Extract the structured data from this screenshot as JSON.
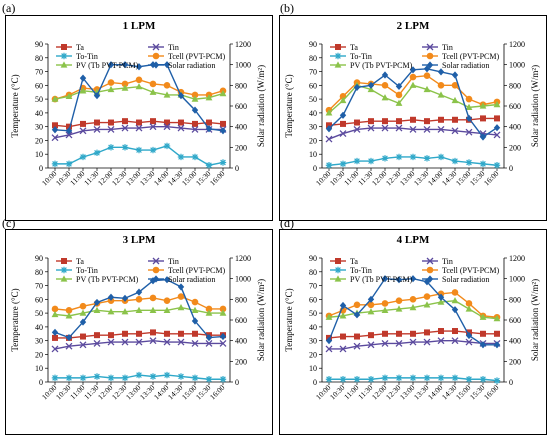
{
  "figure": {
    "panel_labels": [
      "(a)",
      "(b)",
      "(c)",
      "(d)"
    ]
  },
  "series_styles": [
    {
      "key": "Ta",
      "color": "#c0392b",
      "marker": "square"
    },
    {
      "key": "Tin",
      "color": "#5b4a9e",
      "marker": "x"
    },
    {
      "key": "ToTin",
      "color": "#2fa8c9",
      "marker": "star"
    },
    {
      "key": "Tcell",
      "color": "#f28a1b",
      "marker": "circle"
    },
    {
      "key": "PV",
      "color": "#8bc34a",
      "marker": "triangle"
    },
    {
      "key": "Solar",
      "color": "#1f5fa8",
      "marker": "diamond"
    }
  ],
  "chart_data": [
    {
      "type": "line",
      "title": "1 LPM",
      "ylabel": "Temperature (°C)",
      "y2label": "Solar radiation (W/m²)",
      "ylim": [
        0,
        90
      ],
      "y2lim": [
        0,
        1200
      ],
      "yticks": [
        0,
        10,
        20,
        30,
        40,
        50,
        60,
        70,
        80,
        90
      ],
      "y2ticks": [
        0,
        200,
        400,
        600,
        800,
        1000,
        1200
      ],
      "x": [
        "10:00",
        "10:30",
        "11:00",
        "11:30",
        "12:00",
        "12:30",
        "13:00",
        "13:30",
        "14:00",
        "14:30",
        "15:00",
        "15:30",
        "16:00"
      ],
      "grid": false,
      "legend_placement": "top",
      "series": [
        {
          "name": "Ta",
          "axis": "left",
          "values": [
            31,
            30,
            32,
            33,
            33,
            34,
            33,
            34,
            33,
            33,
            32,
            33,
            32
          ]
        },
        {
          "name": "Tin",
          "axis": "left",
          "values": [
            22,
            24,
            27,
            28,
            28,
            29,
            29,
            30,
            30,
            29,
            28,
            28,
            28
          ]
        },
        {
          "name": "To-Tin",
          "axis": "left",
          "values": [
            3,
            3,
            8,
            11,
            15,
            15,
            13,
            13,
            16,
            8,
            8,
            2,
            4
          ]
        },
        {
          "name": "Tcell (PVT-PCM)",
          "axis": "left",
          "values": [
            50,
            53,
            58,
            57,
            62,
            61,
            64,
            61,
            60,
            55,
            53,
            53,
            56
          ]
        },
        {
          "name": "PV (Tb PVT-PCM)",
          "axis": "left",
          "values": [
            50,
            52,
            56,
            55,
            57,
            58,
            59,
            55,
            53,
            53,
            50,
            51,
            54
          ]
        },
        {
          "name": "Solar radiation",
          "axis": "right",
          "values": [
            370,
            360,
            870,
            700,
            1000,
            1000,
            980,
            1000,
            1000,
            700,
            560,
            380,
            360
          ]
        }
      ]
    },
    {
      "type": "line",
      "title": "2 LPM",
      "ylabel": "Temperature (°C)",
      "y2label": "Solar radiation (W/m²)",
      "ylim": [
        0,
        90
      ],
      "y2lim": [
        0,
        1200
      ],
      "yticks": [
        0,
        10,
        20,
        30,
        40,
        50,
        60,
        70,
        80,
        90
      ],
      "y2ticks": [
        0,
        200,
        400,
        600,
        800,
        1000,
        1200
      ],
      "x": [
        "10:00",
        "10:30",
        "11:00",
        "11:30",
        "12:00",
        "12:30",
        "13:00",
        "13:30",
        "14:00",
        "14:30",
        "15:00",
        "15:30",
        "16:00"
      ],
      "grid": false,
      "legend_placement": "top",
      "series": [
        {
          "name": "Ta",
          "axis": "left",
          "values": [
            31,
            32,
            33,
            34,
            34,
            34,
            35,
            34,
            35,
            35,
            35,
            36,
            36
          ]
        },
        {
          "name": "Tin",
          "axis": "left",
          "values": [
            21,
            25,
            28,
            29,
            29,
            29,
            28,
            28,
            28,
            27,
            26,
            25,
            24
          ]
        },
        {
          "name": "To-Tin",
          "axis": "left",
          "values": [
            2,
            3,
            5,
            5,
            7,
            8,
            8,
            7,
            8,
            5,
            4,
            3,
            2
          ]
        },
        {
          "name": "Tcell (PVT-PCM)",
          "axis": "left",
          "values": [
            42,
            52,
            62,
            61,
            60,
            53,
            66,
            67,
            60,
            60,
            50,
            46,
            48
          ]
        },
        {
          "name": "PV (Tb PVT-PCM)",
          "axis": "left",
          "values": [
            40,
            49,
            60,
            57,
            51,
            47,
            60,
            57,
            53,
            49,
            44,
            45,
            46
          ]
        },
        {
          "name": "Solar radiation",
          "axis": "right",
          "values": [
            380,
            510,
            780,
            800,
            900,
            790,
            950,
            960,
            930,
            900,
            480,
            300,
            390
          ]
        }
      ]
    },
    {
      "type": "line",
      "title": "3 LPM",
      "ylabel": "Temperature (°C)",
      "y2label": "Solar radiation (W/m²)",
      "ylim": [
        0,
        90
      ],
      "y2lim": [
        0,
        1200
      ],
      "yticks": [
        0,
        10,
        20,
        30,
        40,
        50,
        60,
        70,
        80,
        90
      ],
      "y2ticks": [
        0,
        200,
        400,
        600,
        800,
        1000,
        1200
      ],
      "x": [
        "10:00",
        "10:30",
        "11:00",
        "11:30",
        "12:00",
        "12:30",
        "13:00",
        "13:30",
        "14:00",
        "14:30",
        "15:00",
        "15:30",
        "16:00"
      ],
      "grid": false,
      "legend_placement": "top",
      "series": [
        {
          "name": "Ta",
          "axis": "left",
          "values": [
            32,
            32,
            33,
            34,
            34,
            35,
            35,
            36,
            35,
            35,
            35,
            34,
            34
          ]
        },
        {
          "name": "Tin",
          "axis": "left",
          "values": [
            24,
            26,
            27,
            28,
            29,
            29,
            29,
            30,
            29,
            29,
            28,
            28,
            28
          ]
        },
        {
          "name": "To-Tin",
          "axis": "left",
          "values": [
            3,
            3,
            3,
            4,
            3,
            3,
            5,
            4,
            5,
            4,
            3,
            2,
            2
          ]
        },
        {
          "name": "Tcell (PVT-PCM)",
          "axis": "left",
          "values": [
            53,
            52,
            55,
            57,
            59,
            59,
            60,
            61,
            59,
            62,
            58,
            53,
            53
          ]
        },
        {
          "name": "PV (Tb PVT-PCM)",
          "axis": "left",
          "values": [
            49,
            48,
            50,
            52,
            51,
            51,
            52,
            52,
            52,
            54,
            52,
            50,
            50
          ]
        },
        {
          "name": "Solar radiation",
          "axis": "right",
          "values": [
            480,
            430,
            580,
            770,
            820,
            810,
            870,
            980,
            990,
            920,
            590,
            430,
            440
          ]
        }
      ]
    },
    {
      "type": "line",
      "title": "4 LPM",
      "ylabel": "Temperature (°C)",
      "y2label": "Solar radiation (W/m²)",
      "ylim": [
        0,
        90
      ],
      "y2lim": [
        0,
        1200
      ],
      "yticks": [
        0,
        10,
        20,
        30,
        40,
        50,
        60,
        70,
        80,
        90
      ],
      "y2ticks": [
        0,
        200,
        400,
        600,
        800,
        1000,
        1200
      ],
      "x": [
        "10:00",
        "10:30",
        "11:00",
        "11:30",
        "12:00",
        "12:30",
        "13:00",
        "13:30",
        "14:00",
        "14:30",
        "15:00",
        "15:30",
        "16:00"
      ],
      "grid": false,
      "legend_placement": "top",
      "series": [
        {
          "name": "Ta",
          "axis": "left",
          "values": [
            32,
            33,
            33,
            34,
            35,
            35,
            35,
            36,
            37,
            37,
            36,
            35,
            35
          ]
        },
        {
          "name": "Tin",
          "axis": "left",
          "values": [
            24,
            24,
            26,
            27,
            28,
            28,
            29,
            29,
            30,
            30,
            29,
            28,
            28
          ]
        },
        {
          "name": "To-Tin",
          "axis": "left",
          "values": [
            2,
            2,
            2,
            2,
            3,
            3,
            3,
            3,
            3,
            3,
            2,
            2,
            1
          ]
        },
        {
          "name": "Tcell (PVT-PCM)",
          "axis": "left",
          "values": [
            48,
            52,
            56,
            56,
            57,
            59,
            60,
            62,
            64,
            65,
            57,
            48,
            47
          ]
        },
        {
          "name": "PV (Tb PVT-PCM)",
          "axis": "left",
          "values": [
            47,
            48,
            50,
            51,
            52,
            53,
            54,
            56,
            58,
            59,
            53,
            47,
            46
          ]
        },
        {
          "name": "Solar radiation",
          "axis": "right",
          "values": [
            400,
            740,
            650,
            800,
            1000,
            990,
            1000,
            970,
            820,
            700,
            450,
            360,
            360
          ]
        }
      ]
    }
  ]
}
